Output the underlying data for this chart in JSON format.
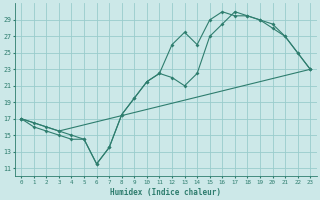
{
  "xlabel": "Humidex (Indice chaleur)",
  "xlim": [
    -0.5,
    23.5
  ],
  "ylim": [
    10,
    31
  ],
  "xticks": [
    0,
    1,
    2,
    3,
    4,
    5,
    6,
    7,
    8,
    9,
    10,
    11,
    12,
    13,
    14,
    15,
    16,
    17,
    18,
    19,
    20,
    21,
    22,
    23
  ],
  "yticks": [
    11,
    13,
    15,
    17,
    19,
    21,
    23,
    25,
    27,
    29
  ],
  "bg_color": "#cce8e8",
  "grid_color": "#99cccc",
  "line_color": "#2e7d6e",
  "line1_x": [
    0,
    1,
    2,
    3,
    4,
    5,
    6,
    7,
    8,
    9,
    10,
    11,
    12,
    13,
    14,
    15,
    16,
    17,
    18,
    19,
    20,
    21,
    22,
    23
  ],
  "line1_y": [
    17,
    16,
    15.5,
    15,
    14.5,
    14.5,
    11.5,
    13.5,
    17.5,
    19.5,
    21.5,
    22.5,
    22,
    21,
    22.5,
    27,
    28.5,
    30,
    29.5,
    29,
    28,
    27,
    25,
    23
  ],
  "line2_x": [
    0,
    1,
    2,
    3,
    23
  ],
  "line2_y": [
    17,
    16.5,
    16,
    15.5,
    23
  ],
  "line3_x": [
    0,
    3,
    4,
    5,
    6,
    7,
    8,
    9,
    10,
    11,
    12,
    13,
    14,
    15,
    16,
    17,
    18,
    19,
    20,
    21,
    22,
    23
  ],
  "line3_y": [
    17,
    15.5,
    15,
    14.5,
    11.5,
    13.5,
    17.5,
    19.5,
    21.5,
    22.5,
    26,
    27.5,
    26,
    29,
    30,
    29.5,
    29.5,
    29,
    28.5,
    27,
    25,
    23
  ]
}
